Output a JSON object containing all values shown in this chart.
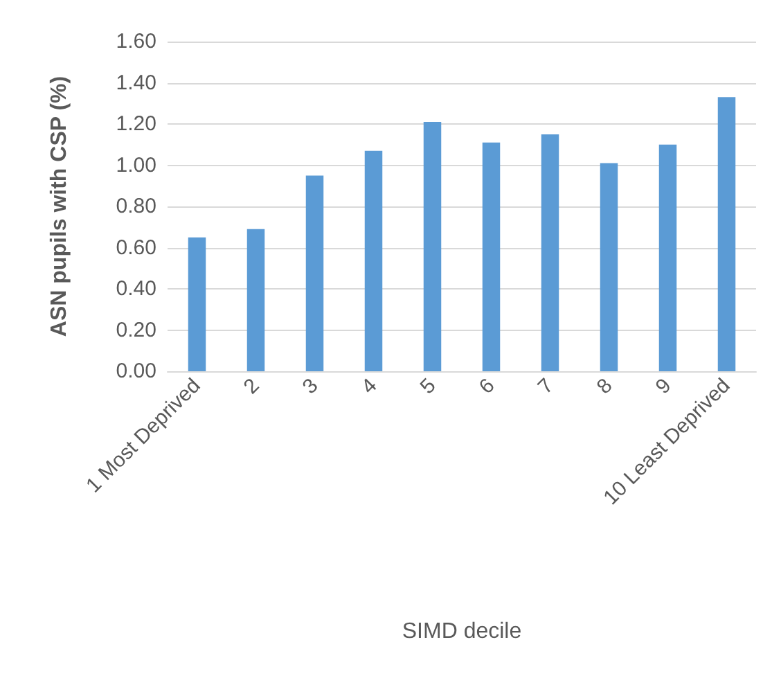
{
  "chart_data": {
    "type": "bar",
    "xlabel": "SIMD decile",
    "ylabel": "ASN pupils with CSP (%)",
    "categories": [
      "1 Most Deprived",
      "2",
      "3",
      "4",
      "5",
      "6",
      "7",
      "8",
      "9",
      "10 Least Deprived"
    ],
    "values": [
      0.65,
      0.69,
      0.95,
      1.07,
      1.21,
      1.11,
      1.15,
      1.01,
      1.1,
      1.33
    ],
    "color": "#5b9bd5",
    "ylim": [
      0,
      1.6
    ],
    "yticks": [
      {
        "value": 0,
        "label": "0.00"
      },
      {
        "value": 0.2,
        "label": "0.20"
      },
      {
        "value": 0.4,
        "label": "0.40"
      },
      {
        "value": 0.6,
        "label": "0.60"
      },
      {
        "value": 0.8,
        "label": "0.80"
      },
      {
        "value": 1.0,
        "label": "1.00"
      },
      {
        "value": 1.2,
        "label": "1.20"
      },
      {
        "value": 1.4,
        "label": "1.40"
      },
      {
        "value": 1.6,
        "label": "1.60"
      }
    ],
    "grid": "y"
  }
}
